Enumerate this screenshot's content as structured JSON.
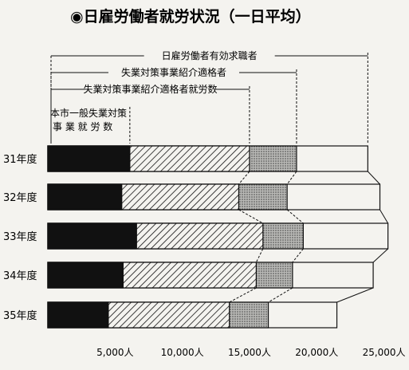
{
  "chart_data": {
    "type": "bar",
    "title": "◉日雇労働者就労状況（一日平均）",
    "categories": [
      "31年度",
      "32年度",
      "33年度",
      "34年度",
      "35年度"
    ],
    "series": [
      {
        "name": "本市一般失業対策事業就労数",
        "values": [
          6100,
          5500,
          6600,
          5600,
          4500
        ],
        "pattern": "solid"
      },
      {
        "name": "失業対策事業紹介適格者就労数",
        "values": [
          15000,
          14200,
          16000,
          15500,
          13500
        ],
        "pattern": "hatch"
      },
      {
        "name": "失業対策事業紹介適格者",
        "values": [
          18500,
          17800,
          19000,
          18200,
          16400
        ],
        "pattern": "dots"
      },
      {
        "name": "日雇労働者有効求職者",
        "values": [
          23800,
          24700,
          25300,
          24200,
          21500
        ],
        "pattern": "blank"
      }
    ],
    "legend": [
      {
        "text": "日雇労働者有効求職者"
      },
      {
        "text": "失業対策事業紹介適格者"
      },
      {
        "text": "失業対策事業紹介適格者就労数"
      },
      {
        "text1": "本市一般失業対策",
        "text2": "事 業 就 労 数"
      }
    ],
    "x_ticks": [
      {
        "value": 5000,
        "label": "5,000人"
      },
      {
        "value": 10000,
        "label": "10,000人"
      },
      {
        "value": 15000,
        "label": "15,000人"
      },
      {
        "value": 20000,
        "label": "20,000人"
      },
      {
        "value": 25000,
        "label": "25,000人"
      }
    ],
    "xlim": [
      0,
      25500
    ],
    "colors": {
      "ink": "#111111",
      "paper": "#f4f3ef",
      "dots": "#9a9a9a"
    }
  }
}
